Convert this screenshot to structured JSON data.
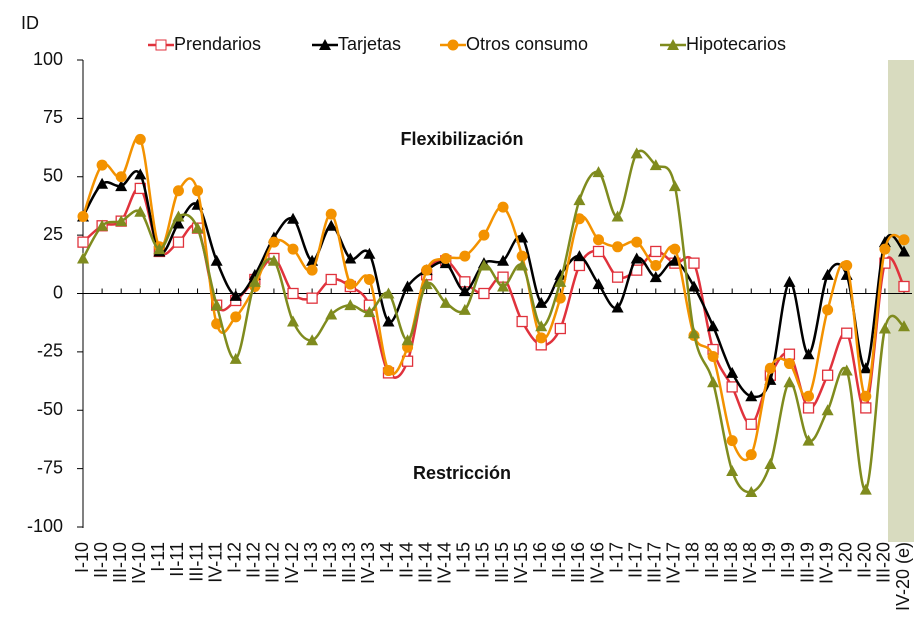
{
  "chart_data": {
    "type": "line",
    "y_label": "ID",
    "annotations": [
      "Flexibilización",
      "Restricción"
    ],
    "categories": [
      "I-10",
      "II-10",
      "III-10",
      "IV-10",
      "I-11",
      "II-11",
      "III-11",
      "IV-11",
      "I-12",
      "II-12",
      "III-12",
      "IV-12",
      "I-13",
      "II-13",
      "III-13",
      "IV-13",
      "I-14",
      "II-14",
      "III-14",
      "IV-14",
      "I-15",
      "II-15",
      "III-15",
      "IV-15",
      "I-16",
      "II-16",
      "III-16",
      "IV-16",
      "I-17",
      "II-17",
      "III-17",
      "IV-17",
      "I-18",
      "II-18",
      "III-18",
      "IV-18",
      "I-19",
      "II-19",
      "III-19",
      "IV-19",
      "I-20",
      "II-20",
      "III-20",
      "IV-20 (e)"
    ],
    "series": [
      {
        "name": "Prendarios",
        "color": "#e0323c",
        "marker": "square",
        "values": [
          22,
          29,
          31,
          45,
          18,
          22,
          28,
          -5,
          -3,
          6,
          15,
          0,
          -2,
          6,
          3,
          -5,
          -34,
          -29,
          8,
          14,
          5,
          0,
          7,
          -12,
          -22,
          -15,
          12,
          18,
          7,
          10,
          18,
          13,
          13,
          -24,
          -40,
          -56,
          -35,
          -26,
          -49,
          -35,
          -17,
          -49,
          13,
          3
        ]
      },
      {
        "name": "Tarjetas",
        "color": "#000000",
        "marker": "triangle",
        "values": [
          33,
          47,
          46,
          51,
          18,
          30,
          38,
          14,
          -1,
          8,
          24,
          32,
          14,
          29,
          15,
          17,
          -12,
          3,
          10,
          13,
          1,
          13,
          14,
          24,
          -4,
          8,
          16,
          4,
          -6,
          15,
          7,
          14,
          3,
          -14,
          -34,
          -44,
          -37,
          5,
          -26,
          8,
          8,
          -32,
          22,
          18
        ]
      },
      {
        "name": "Otros consumo",
        "color": "#f39200",
        "marker": "circle",
        "values": [
          33,
          55,
          50,
          66,
          20,
          44,
          44,
          -13,
          -10,
          3,
          22,
          19,
          10,
          34,
          4,
          6,
          -33,
          -23,
          10,
          15,
          16,
          25,
          37,
          16,
          -19,
          -2,
          32,
          23,
          20,
          22,
          12,
          19,
          -18,
          -27,
          -63,
          -69,
          -32,
          -30,
          -44,
          -7,
          12,
          -44,
          19,
          23
        ]
      },
      {
        "name": "Hipotecarios",
        "color": "#7f8b1e",
        "marker": "triangle",
        "values": [
          15,
          29,
          31,
          35,
          19,
          33,
          28,
          -5,
          -28,
          5,
          14,
          -12,
          -20,
          -9,
          -5,
          -8,
          0,
          -20,
          4,
          -4,
          -7,
          12,
          3,
          12,
          -14,
          5,
          40,
          52,
          33,
          60,
          55,
          46,
          -17,
          -38,
          -76,
          -85,
          -73,
          -38,
          -63,
          -50,
          -33,
          -84,
          -15,
          -14
        ]
      }
    ],
    "ylim": [
      -100,
      100
    ],
    "yticks": [
      -100,
      -75,
      -50,
      -25,
      0,
      25,
      50,
      75,
      100
    ],
    "legend": "top"
  }
}
